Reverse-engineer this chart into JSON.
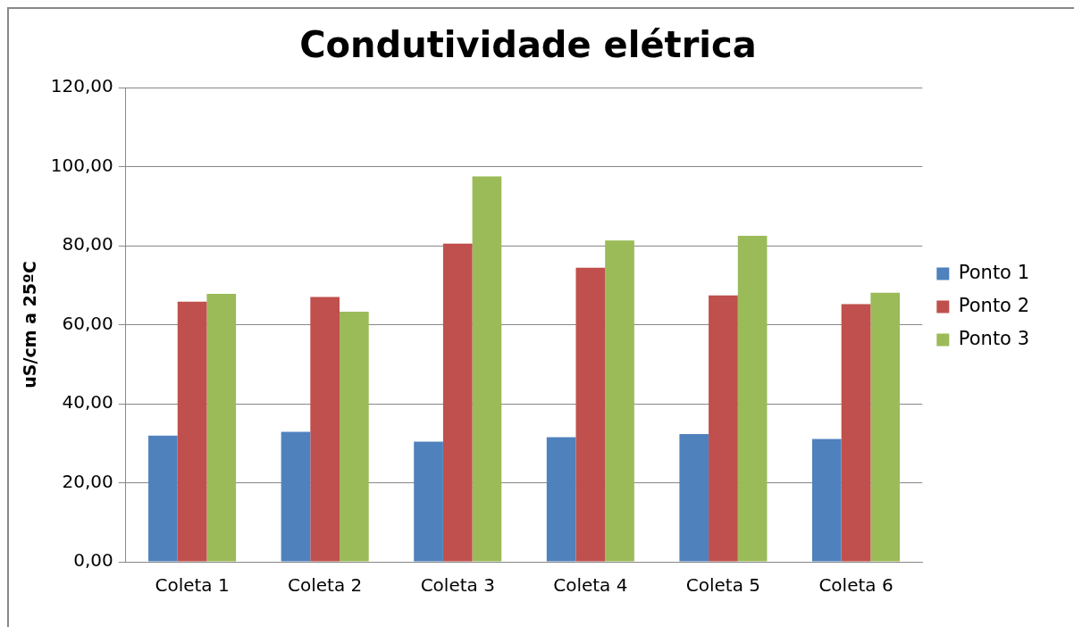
{
  "chart_data": {
    "type": "bar",
    "title": "Condutividade elétrica",
    "ylabel": "uS/cm a 25ºC",
    "categories": [
      "Coleta 1",
      "Coleta 2",
      "Coleta 3",
      "Coleta 4",
      "Coleta 5",
      "Coleta 6"
    ],
    "series": [
      {
        "name": "Ponto 1",
        "color": "#4f81bd",
        "values": [
          31.9,
          32.9,
          30.4,
          31.5,
          32.3,
          31.1
        ]
      },
      {
        "name": "Ponto 2",
        "color": "#c0504d",
        "values": [
          65.8,
          67.0,
          80.5,
          74.4,
          67.4,
          65.2
        ]
      },
      {
        "name": "Ponto 3",
        "color": "#9bbb59",
        "values": [
          67.8,
          63.3,
          97.5,
          81.3,
          82.5,
          68.1
        ]
      }
    ],
    "ylim": [
      0,
      120
    ],
    "yticks": [
      {
        "value": 0,
        "label": "0,00"
      },
      {
        "value": 20,
        "label": "20,00"
      },
      {
        "value": 40,
        "label": "40,00"
      },
      {
        "value": 60,
        "label": "60,00"
      },
      {
        "value": 80,
        "label": "80,00"
      },
      {
        "value": 100,
        "label": "100,00"
      },
      {
        "value": 120,
        "label": "120,00"
      }
    ],
    "grid": "y",
    "legend": "right"
  }
}
